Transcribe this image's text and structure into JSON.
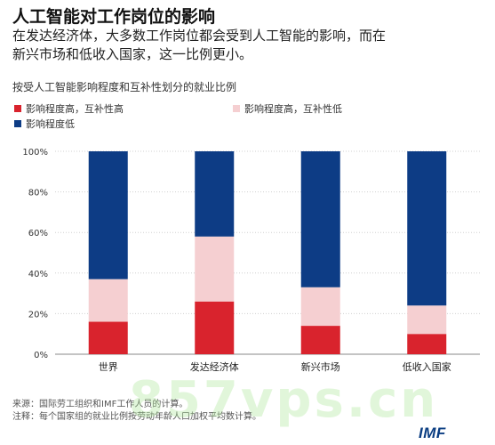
{
  "header": {
    "title": "人工智能对工作岗位的影响",
    "subtitle_line1": "在发达经济体，大多数工作岗位都会受到人工智能的影响，而在",
    "subtitle_line2": "新兴市场和低收入国家，这一比例更小。"
  },
  "legend": {
    "items": [
      {
        "label": "影响程度高，互补性高",
        "color": "#d9232d"
      },
      {
        "label": "影响程度高，互补性低",
        "color": "#f5cfd1"
      },
      {
        "label": "影响程度低",
        "color": "#0d3c85"
      }
    ]
  },
  "footer": {
    "source": "来源：国际劳工组织和IMF工作人员的计算。",
    "note": "注释：每个国家组的就业比例按劳动年龄人口加权平均数计算。",
    "logo": "IMF",
    "watermark": "857vps.cn"
  },
  "chart_data": {
    "type": "bar",
    "stacked": true,
    "title": "按受人工智能影响程度和互补性划分的就业比例",
    "categories": [
      "世界",
      "发达经济体",
      "新兴市场",
      "低收入国家"
    ],
    "series": [
      {
        "name": "影响程度高，互补性高",
        "values": [
          16,
          26,
          14,
          10
        ],
        "color": "#d9232d"
      },
      {
        "name": "影响程度高，互补性低",
        "values": [
          21,
          32,
          19,
          14
        ],
        "color": "#f5cfd1"
      },
      {
        "name": "影响程度低",
        "values": [
          63,
          42,
          67,
          76
        ],
        "color": "#0d3c85"
      }
    ],
    "yticks": [
      "0%",
      "20%",
      "40%",
      "60%",
      "80%",
      "100%"
    ],
    "ylim": [
      0,
      100
    ],
    "grid": true,
    "legend_position": "top"
  }
}
